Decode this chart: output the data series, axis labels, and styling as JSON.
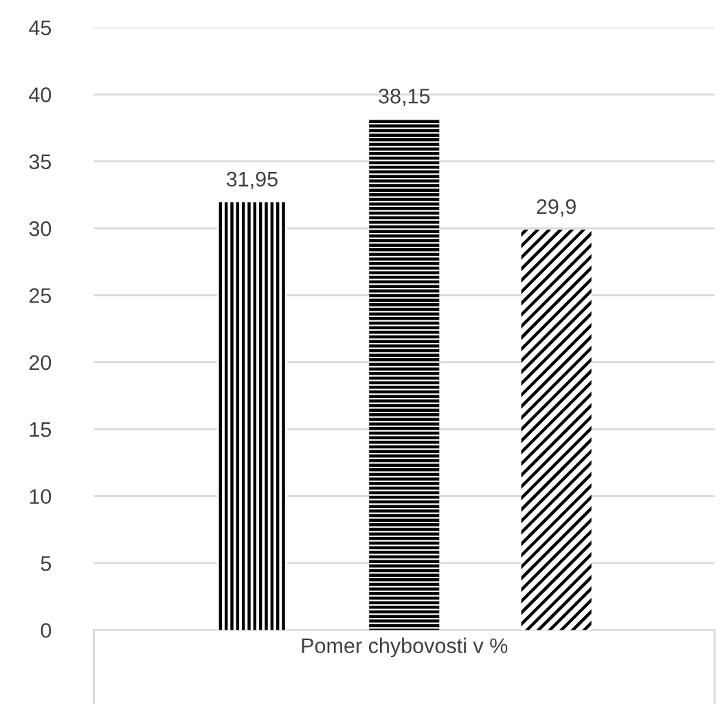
{
  "chart_data": {
    "type": "bar",
    "categories": [
      "Pomer chybovosti v %"
    ],
    "series": [
      {
        "color": "#000000",
        "values": [
          31.95
        ],
        "value_labels": [
          "31,95"
        ]
      },
      {
        "color": "#000000",
        "values": [
          38.15
        ],
        "value_labels": [
          "38,15"
        ]
      },
      {
        "color": "#000000",
        "values": [
          29.9
        ],
        "value_labels": [
          "29,9"
        ]
      }
    ],
    "ylim": [
      0,
      45
    ],
    "yticks": [
      0,
      5,
      10,
      15,
      20,
      25,
      30,
      35,
      40,
      45
    ],
    "grid": "y"
  }
}
